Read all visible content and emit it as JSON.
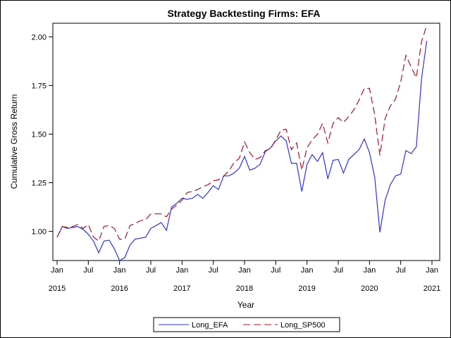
{
  "chart_data": {
    "type": "line",
    "title": "Strategy Backtesting  Firms: EFA",
    "xlabel": "Year",
    "ylabel": "Cumulative Gross Return",
    "xlim": [
      2015.0,
      2021.0
    ],
    "ylim": [
      0.85,
      2.07
    ],
    "x_ticks": [
      {
        "pos": 2015.0,
        "label": "Jan",
        "year": "2015"
      },
      {
        "pos": 2015.5,
        "label": "Jul",
        "year": ""
      },
      {
        "pos": 2016.0,
        "label": "Jan",
        "year": "2016"
      },
      {
        "pos": 2016.5,
        "label": "Jul",
        "year": ""
      },
      {
        "pos": 2017.0,
        "label": "Jan",
        "year": "2017"
      },
      {
        "pos": 2017.5,
        "label": "Jul",
        "year": ""
      },
      {
        "pos": 2018.0,
        "label": "Jan",
        "year": "2018"
      },
      {
        "pos": 2018.5,
        "label": "Jul",
        "year": ""
      },
      {
        "pos": 2019.0,
        "label": "Jan",
        "year": "2019"
      },
      {
        "pos": 2019.5,
        "label": "Jul",
        "year": ""
      },
      {
        "pos": 2020.0,
        "label": "Jan",
        "year": "2020"
      },
      {
        "pos": 2020.5,
        "label": "Jul",
        "year": ""
      },
      {
        "pos": 2021.0,
        "label": "Jan",
        "year": "2021"
      }
    ],
    "y_ticks": [
      {
        "value": 1.0,
        "label": "1.00"
      },
      {
        "value": 1.25,
        "label": "1.25"
      },
      {
        "value": 1.5,
        "label": "1.50"
      },
      {
        "value": 1.75,
        "label": "1.75"
      },
      {
        "value": 2.0,
        "label": "2.00"
      }
    ],
    "grid": false,
    "legend_position": "bottom",
    "series": [
      {
        "name": "Long_EFA",
        "color": "#3333cc",
        "dash": "solid",
        "points": [
          [
            2015.0,
            0.97
          ],
          [
            2015.083,
            1.025
          ],
          [
            2015.167,
            1.015
          ],
          [
            2015.25,
            1.02
          ],
          [
            2015.333,
            1.025
          ],
          [
            2015.417,
            1.01
          ],
          [
            2015.5,
            0.985
          ],
          [
            2015.583,
            0.95
          ],
          [
            2015.667,
            0.89
          ],
          [
            2015.75,
            0.95
          ],
          [
            2015.833,
            0.955
          ],
          [
            2015.917,
            0.91
          ],
          [
            2016.0,
            0.85
          ],
          [
            2016.083,
            0.865
          ],
          [
            2016.167,
            0.93
          ],
          [
            2016.25,
            0.96
          ],
          [
            2016.333,
            0.965
          ],
          [
            2016.417,
            0.97
          ],
          [
            2016.5,
            1.015
          ],
          [
            2016.583,
            1.03
          ],
          [
            2016.667,
            1.045
          ],
          [
            2016.75,
            1.005
          ],
          [
            2016.833,
            1.125
          ],
          [
            2016.917,
            1.145
          ],
          [
            2017.0,
            1.17
          ],
          [
            2017.083,
            1.165
          ],
          [
            2017.167,
            1.17
          ],
          [
            2017.25,
            1.19
          ],
          [
            2017.333,
            1.17
          ],
          [
            2017.417,
            1.2
          ],
          [
            2017.5,
            1.235
          ],
          [
            2017.583,
            1.215
          ],
          [
            2017.667,
            1.285
          ],
          [
            2017.75,
            1.285
          ],
          [
            2017.833,
            1.3
          ],
          [
            2017.917,
            1.325
          ],
          [
            2018.0,
            1.385
          ],
          [
            2018.083,
            1.315
          ],
          [
            2018.167,
            1.325
          ],
          [
            2018.25,
            1.345
          ],
          [
            2018.333,
            1.41
          ],
          [
            2018.417,
            1.43
          ],
          [
            2018.5,
            1.465
          ],
          [
            2018.583,
            1.49
          ],
          [
            2018.667,
            1.465
          ],
          [
            2018.75,
            1.35
          ],
          [
            2018.833,
            1.35
          ],
          [
            2018.917,
            1.205
          ],
          [
            2019.0,
            1.345
          ],
          [
            2019.083,
            1.395
          ],
          [
            2019.167,
            1.36
          ],
          [
            2019.25,
            1.405
          ],
          [
            2019.333,
            1.27
          ],
          [
            2019.417,
            1.365
          ],
          [
            2019.5,
            1.37
          ],
          [
            2019.583,
            1.3
          ],
          [
            2019.667,
            1.37
          ],
          [
            2019.75,
            1.395
          ],
          [
            2019.833,
            1.42
          ],
          [
            2019.917,
            1.475
          ],
          [
            2020.0,
            1.405
          ],
          [
            2020.083,
            1.28
          ],
          [
            2020.167,
            0.995
          ],
          [
            2020.25,
            1.16
          ],
          [
            2020.333,
            1.24
          ],
          [
            2020.417,
            1.285
          ],
          [
            2020.5,
            1.295
          ],
          [
            2020.583,
            1.415
          ],
          [
            2020.667,
            1.4
          ],
          [
            2020.75,
            1.435
          ],
          [
            2020.833,
            1.785
          ],
          [
            2020.917,
            1.98
          ]
        ]
      },
      {
        "name": "Long_SP500",
        "color": "#a0142a",
        "dash": "dashed",
        "points": [
          [
            2015.0,
            0.97
          ],
          [
            2015.083,
            1.025
          ],
          [
            2015.167,
            1.02
          ],
          [
            2015.25,
            1.025
          ],
          [
            2015.333,
            1.035
          ],
          [
            2015.417,
            1.015
          ],
          [
            2015.5,
            1.035
          ],
          [
            2015.583,
            0.97
          ],
          [
            2015.667,
            0.95
          ],
          [
            2015.75,
            1.025
          ],
          [
            2015.833,
            1.03
          ],
          [
            2015.917,
            1.015
          ],
          [
            2016.0,
            0.96
          ],
          [
            2016.083,
            0.96
          ],
          [
            2016.167,
            1.03
          ],
          [
            2016.25,
            1.04
          ],
          [
            2016.333,
            1.055
          ],
          [
            2016.417,
            1.06
          ],
          [
            2016.5,
            1.09
          ],
          [
            2016.583,
            1.09
          ],
          [
            2016.667,
            1.09
          ],
          [
            2016.75,
            1.075
          ],
          [
            2016.833,
            1.115
          ],
          [
            2016.917,
            1.135
          ],
          [
            2017.0,
            1.16
          ],
          [
            2017.083,
            1.2
          ],
          [
            2017.167,
            1.205
          ],
          [
            2017.25,
            1.215
          ],
          [
            2017.333,
            1.23
          ],
          [
            2017.417,
            1.24
          ],
          [
            2017.5,
            1.26
          ],
          [
            2017.583,
            1.265
          ],
          [
            2017.667,
            1.285
          ],
          [
            2017.75,
            1.31
          ],
          [
            2017.833,
            1.355
          ],
          [
            2017.917,
            1.375
          ],
          [
            2018.0,
            1.46
          ],
          [
            2018.083,
            1.405
          ],
          [
            2018.167,
            1.37
          ],
          [
            2018.25,
            1.38
          ],
          [
            2018.333,
            1.415
          ],
          [
            2018.417,
            1.425
          ],
          [
            2018.5,
            1.47
          ],
          [
            2018.583,
            1.52
          ],
          [
            2018.667,
            1.525
          ],
          [
            2018.75,
            1.42
          ],
          [
            2018.833,
            1.455
          ],
          [
            2018.917,
            1.315
          ],
          [
            2019.0,
            1.43
          ],
          [
            2019.083,
            1.47
          ],
          [
            2019.167,
            1.5
          ],
          [
            2019.25,
            1.555
          ],
          [
            2019.333,
            1.455
          ],
          [
            2019.417,
            1.555
          ],
          [
            2019.5,
            1.585
          ],
          [
            2019.583,
            1.56
          ],
          [
            2019.667,
            1.59
          ],
          [
            2019.75,
            1.625
          ],
          [
            2019.833,
            1.675
          ],
          [
            2019.917,
            1.735
          ],
          [
            2020.0,
            1.735
          ],
          [
            2020.083,
            1.6
          ],
          [
            2020.167,
            1.39
          ],
          [
            2020.25,
            1.58
          ],
          [
            2020.333,
            1.645
          ],
          [
            2020.417,
            1.68
          ],
          [
            2020.5,
            1.77
          ],
          [
            2020.583,
            1.905
          ],
          [
            2020.667,
            1.845
          ],
          [
            2020.75,
            1.79
          ],
          [
            2020.833,
            1.975
          ],
          [
            2020.917,
            2.06
          ]
        ]
      }
    ]
  }
}
